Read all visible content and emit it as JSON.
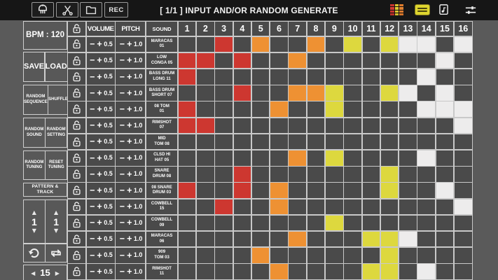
{
  "topbar": {
    "title": "[ 1/1 ] INPUT AND/OR RANDOM GENERATE",
    "rec_label": "REC",
    "icons_left": [
      "brush-icon",
      "scissors-icon",
      "folder-icon"
    ],
    "icons_right": [
      "pattern-colors-icon",
      "swing-icon",
      "document-icon",
      "settings-sliders-icon"
    ]
  },
  "sidebar": {
    "bpm_label": "BPM : 120",
    "save": "SAVE",
    "load": "LOAD",
    "random_sequence": "RANDOM SEQUENCE",
    "shuffle": "SHUFFLE",
    "random_sound": "RANDOM SOUND",
    "random_setting": "RANDOM SETTING",
    "random_tuning": "RANDOM TUNING",
    "reset_tuning": "RESET TUNING",
    "pattern_track": "PATTERN & TRACK",
    "pattern_value": "1",
    "track_value": "1",
    "up_arrow": "▲",
    "down_arrow": "▼",
    "page_prev": "◀",
    "page_value": "15",
    "page_next": "▶",
    "icons": [
      "lock-icon",
      "undo-icon",
      "loop-icon"
    ]
  },
  "grid": {
    "headers": {
      "volume": "VOLUME",
      "pitch": "PITCH",
      "sound": "SOUND"
    },
    "step_numbers": [
      "1",
      "2",
      "3",
      "4",
      "5",
      "6",
      "7",
      "8",
      "9",
      "10",
      "11",
      "12",
      "13",
      "14",
      "15",
      "16"
    ],
    "minus_label": "−",
    "plus_label": "+",
    "tracks": [
      {
        "volume": "0.5",
        "pitch": "1.0",
        "sound": "MARACAS\n01",
        "steps": [
          "",
          "",
          "red",
          "",
          "orange",
          "",
          "",
          "orange",
          "",
          "yellow",
          "",
          "yellow",
          "white",
          "white",
          "",
          "white"
        ]
      },
      {
        "volume": "0.5",
        "pitch": "1.0",
        "sound": "LOW\nCONGA 05",
        "steps": [
          "red",
          "red",
          "",
          "red",
          "",
          "",
          "orange",
          "",
          "",
          "",
          "",
          "",
          "",
          "",
          "white",
          ""
        ]
      },
      {
        "volume": "0.5",
        "pitch": "1.0",
        "sound": "BASS DRUM\nLONG 11",
        "steps": [
          "red",
          "",
          "",
          "",
          "",
          "",
          "",
          "",
          "",
          "",
          "",
          "",
          "",
          "white",
          "",
          ""
        ]
      },
      {
        "volume": "0.5",
        "pitch": "1.0",
        "sound": "BASS DRUM\nSHORT 07",
        "steps": [
          "",
          "",
          "",
          "red",
          "",
          "",
          "orange",
          "orange",
          "yellow",
          "",
          "",
          "yellow",
          "white",
          "",
          "white",
          ""
        ]
      },
      {
        "volume": "0.5",
        "pitch": "1.0",
        "sound": "08 TOM\n01",
        "steps": [
          "red",
          "",
          "",
          "",
          "",
          "orange",
          "",
          "",
          "yellow",
          "",
          "",
          "",
          "",
          "white",
          "white",
          "white"
        ]
      },
      {
        "volume": "0.5",
        "pitch": "1.0",
        "sound": "RIMSHOT\n07",
        "steps": [
          "red",
          "red",
          "",
          "",
          "",
          "",
          "",
          "",
          "",
          "",
          "",
          "",
          "",
          "",
          "",
          "white"
        ]
      },
      {
        "volume": "0.5",
        "pitch": "1.0",
        "sound": "MID\nTOM 08",
        "steps": [
          "",
          "",
          "",
          "",
          "",
          "",
          "",
          "",
          "",
          "",
          "",
          "",
          "",
          "",
          "",
          ""
        ]
      },
      {
        "volume": "0.5",
        "pitch": "1.0",
        "sound": "CLSD HI\nHAT 05",
        "steps": [
          "",
          "",
          "",
          "",
          "",
          "",
          "orange",
          "",
          "yellow",
          "",
          "",
          "",
          "",
          "white",
          "",
          ""
        ]
      },
      {
        "volume": "0.5",
        "pitch": "1.0",
        "sound": "SNARE\nDRUM 08",
        "steps": [
          "",
          "",
          "",
          "red",
          "",
          "",
          "",
          "",
          "",
          "",
          "",
          "yellow",
          "",
          "",
          "",
          ""
        ]
      },
      {
        "volume": "0.5",
        "pitch": "1.0",
        "sound": "08 SNARE\nDRUM 03",
        "steps": [
          "red",
          "",
          "",
          "red",
          "",
          "orange",
          "",
          "",
          "",
          "",
          "",
          "yellow",
          "",
          "",
          "white",
          ""
        ]
      },
      {
        "volume": "0.5",
        "pitch": "1.0",
        "sound": "COWBELL\n15",
        "steps": [
          "",
          "",
          "red",
          "",
          "",
          "orange",
          "",
          "",
          "",
          "",
          "",
          "",
          "",
          "",
          "",
          "white"
        ]
      },
      {
        "volume": "0.5",
        "pitch": "1.0",
        "sound": "COWBELL\n09",
        "steps": [
          "",
          "",
          "",
          "",
          "",
          "",
          "",
          "",
          "yellow",
          "",
          "",
          "",
          "",
          "",
          "",
          ""
        ]
      },
      {
        "volume": "0.5",
        "pitch": "1.0",
        "sound": "MARACAS\n06",
        "steps": [
          "",
          "",
          "",
          "",
          "",
          "",
          "orange",
          "",
          "",
          "",
          "yellow",
          "yellow",
          "white",
          "",
          "",
          ""
        ]
      },
      {
        "volume": "0.5",
        "pitch": "1.0",
        "sound": "909\nTOM 03",
        "steps": [
          "",
          "",
          "",
          "",
          "orange",
          "",
          "",
          "",
          "",
          "",
          "",
          "yellow",
          "",
          "",
          "",
          ""
        ]
      },
      {
        "volume": "0.5",
        "pitch": "1.0",
        "sound": "RIMSHOT\n11",
        "steps": [
          "",
          "",
          "",
          "",
          "",
          "orange",
          "",
          "",
          "",
          "",
          "yellow",
          "yellow",
          "",
          "white",
          "",
          ""
        ]
      }
    ]
  },
  "colors": {
    "red": "#cd3730",
    "orange": "#ee9133",
    "yellow": "#ddd83e",
    "white": "#edecec",
    "cell_off": "#4a4a4a",
    "grid_line": "#c9c9c9",
    "background": "#5a5a5a",
    "topbar": "#161616"
  }
}
